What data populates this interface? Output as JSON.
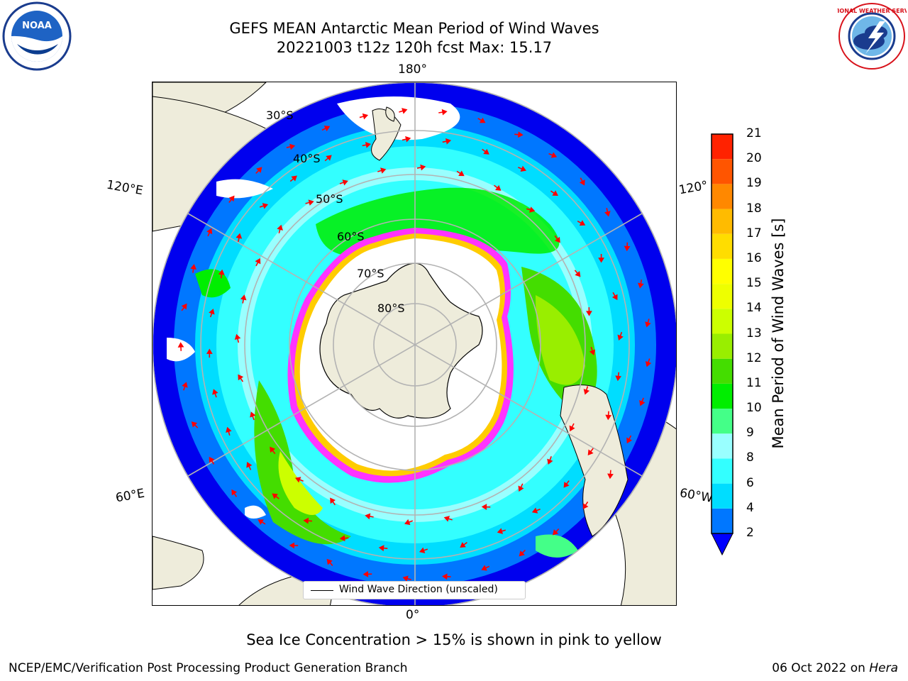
{
  "title": {
    "line1": "GEFS MEAN Antarctic Mean Period of Wind Waves",
    "line2": "20221003 t12z 120h fcst   Max: 15.17"
  },
  "map": {
    "projection": "south-polar-stereographic",
    "longitude_labels": {
      "top": "180°",
      "bottom": "0°",
      "left_upper": "120°E",
      "left_lower": "60°E",
      "right_upper": "120°",
      "right_lower": "60°W"
    },
    "latitude_labels": [
      "30°S",
      "40°S",
      "50°S",
      "60°S",
      "70°S",
      "80°S"
    ],
    "legend": "Wind Wave Direction (unscaled)",
    "land_color": "#eeecdb",
    "arrow_color": "#ff0000",
    "sea_ice_colors": [
      "#ff33ff",
      "#ffcc00"
    ]
  },
  "colorbar": {
    "label": "Mean Period of Wind Waves [s]",
    "ticks": [
      "2",
      "4",
      "6",
      "8",
      "9",
      "10",
      "11",
      "12",
      "13",
      "14",
      "15",
      "16",
      "17",
      "18",
      "19",
      "20",
      "21"
    ],
    "colors": [
      "#0077ff",
      "#00ddff",
      "#33ffff",
      "#99ffff",
      "#44ff88",
      "#00ee00",
      "#44dd00",
      "#99ee00",
      "#ccff00",
      "#eeff00",
      "#ffff00",
      "#ffdd00",
      "#ffbb00",
      "#ff8800",
      "#ff5500",
      "#ff2200"
    ],
    "extend_color": "#0000ff"
  },
  "footer": {
    "note": "Sea Ice Concentration > 15% is shown in pink to yellow",
    "credit": "NCEP/EMC/Verification Post Processing Product Generation Branch",
    "date_prefix": "06 Oct 2022 on ",
    "machine": "Hera"
  },
  "logos": {
    "noaa_text": "NOAA",
    "nws_text": "NATIONAL WEATHER SERVICE"
  }
}
